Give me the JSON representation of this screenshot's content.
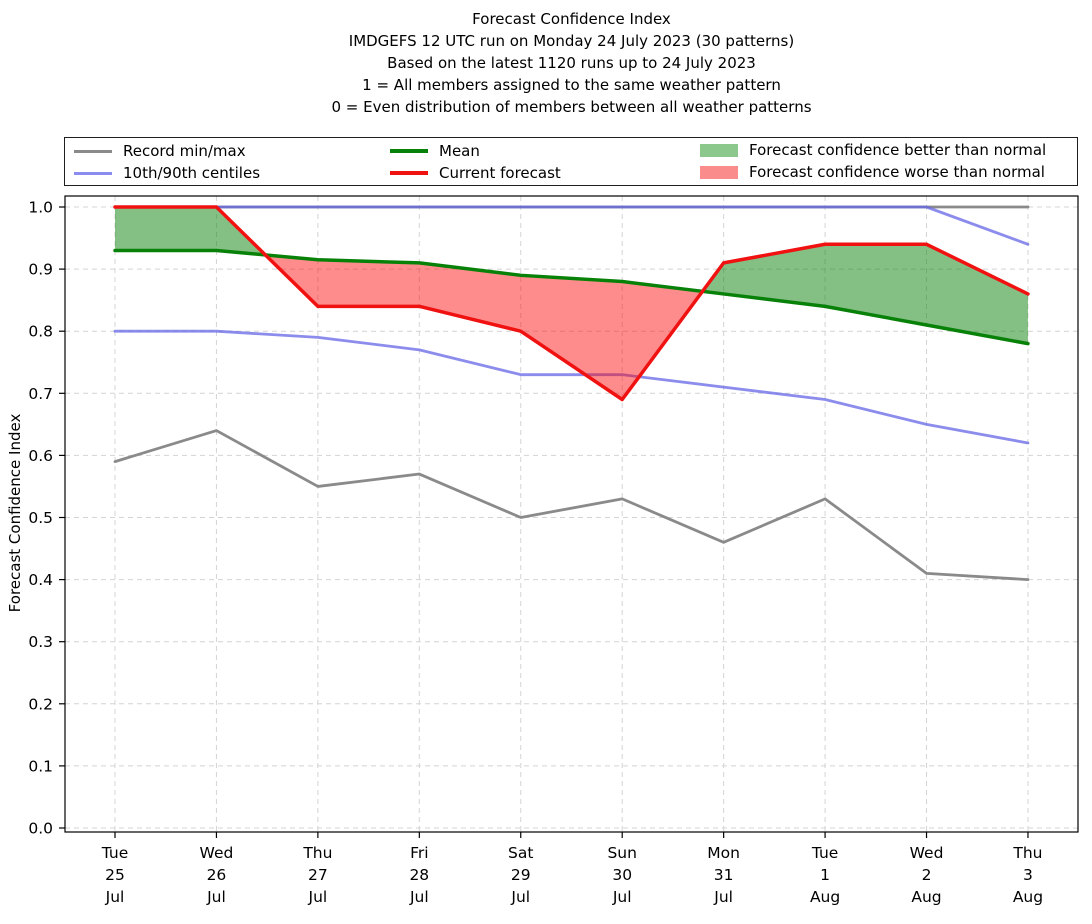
{
  "header": {
    "lines": [
      "Forecast Confidence Index",
      "IMDGEFS 12 UTC run on Monday 24 July 2023 (30 patterns)",
      "Based on the latest 1120 runs up to 24 July 2023",
      "1 = All members assigned to the same weather pattern",
      "0 = Even distribution of members between all weather patterns"
    ]
  },
  "legend": {
    "items": [
      {
        "label": "Record min/max",
        "swatch": "line",
        "color": "#8a8a8a"
      },
      {
        "label": "10th/90th centiles",
        "swatch": "line",
        "color": "#8c8cf0"
      },
      {
        "label": "Mean",
        "swatch": "line",
        "color": "#088108"
      },
      {
        "label": "Current forecast",
        "swatch": "line",
        "color": "#f01111"
      },
      {
        "label": "Forecast confidence better than normal",
        "swatch": "patch",
        "color": "#8cc88c"
      },
      {
        "label": "Forecast confidence worse than normal",
        "swatch": "patch",
        "color": "#fa8c8c"
      }
    ]
  },
  "chart_data": {
    "type": "line",
    "title": "Forecast Confidence Index",
    "ylabel": "Forecast Confidence Index",
    "grid": true,
    "legend_position": "top",
    "x_labels": [
      [
        "Tue",
        "25",
        "Jul"
      ],
      [
        "Wed",
        "26",
        "Jul"
      ],
      [
        "Thu",
        "27",
        "Jul"
      ],
      [
        "Fri",
        "28",
        "Jul"
      ],
      [
        "Sat",
        "29",
        "Jul"
      ],
      [
        "Sun",
        "30",
        "Jul"
      ],
      [
        "Mon",
        "31",
        "Jul"
      ],
      [
        "Tue",
        "1",
        "Aug"
      ],
      [
        "Wed",
        "2",
        "Aug"
      ],
      [
        "Thu",
        "3",
        "Aug"
      ]
    ],
    "axes": {
      "ylim": [
        0.0,
        1.02
      ],
      "yticks": [
        0.0,
        0.1,
        0.2,
        0.3,
        0.4,
        0.5,
        0.6,
        0.7,
        0.8,
        0.9,
        1.0
      ],
      "ytick_labels": [
        "0.0",
        "0.1",
        "0.2",
        "0.3",
        "0.4",
        "0.5",
        "0.6",
        "0.7",
        "0.8",
        "0.9",
        "1.0"
      ],
      "grid_color": "#d4d4d4",
      "spine_color": "#000000"
    },
    "series": [
      {
        "name": "record-max",
        "legend": "Record min/max",
        "color": "#8a8a8a",
        "width": 2.8,
        "opacity": 1,
        "values": [
          1.0,
          1.0,
          1.0,
          1.0,
          1.0,
          1.0,
          1.0,
          1.0,
          1.0,
          1.0
        ]
      },
      {
        "name": "record-min",
        "legend": "Record min/max",
        "color": "#8a8a8a",
        "width": 2.8,
        "opacity": 1,
        "values": [
          0.59,
          0.64,
          0.55,
          0.57,
          0.5,
          0.53,
          0.46,
          0.53,
          0.41,
          0.4
        ]
      },
      {
        "name": "centile-90th",
        "legend": "10th/90th centiles",
        "color": "#6666e6",
        "width": 2.8,
        "opacity": 0.75,
        "values": [
          1.0,
          1.0,
          1.0,
          1.0,
          1.0,
          1.0,
          1.0,
          1.0,
          1.0,
          0.94
        ]
      },
      {
        "name": "centile-10th",
        "legend": "10th/90th centiles",
        "color": "#6666e6",
        "width": 2.8,
        "opacity": 0.75,
        "values": [
          0.8,
          0.8,
          0.79,
          0.77,
          0.73,
          0.73,
          0.71,
          0.69,
          0.65,
          0.62
        ]
      },
      {
        "name": "mean",
        "legend": "Mean",
        "color": "#088108",
        "width": 3.5,
        "opacity": 1,
        "values": [
          0.93,
          0.93,
          0.915,
          0.91,
          0.89,
          0.88,
          0.86,
          0.84,
          0.81,
          0.78
        ]
      },
      {
        "name": "current-forecast",
        "legend": "Current forecast",
        "color": "#f01111",
        "width": 3.5,
        "opacity": 1,
        "values": [
          1.0,
          1.0,
          0.84,
          0.84,
          0.8,
          0.69,
          0.91,
          0.94,
          0.94,
          0.86
        ]
      }
    ],
    "fills": {
      "between": [
        "current-forecast",
        "mean"
      ],
      "better_label": "Forecast confidence better than normal",
      "better_color": "rgba(10,128,10,0.5)",
      "worse_label": "Forecast confidence worse than normal",
      "worse_color": "rgba(255,10,10,0.47)"
    }
  }
}
